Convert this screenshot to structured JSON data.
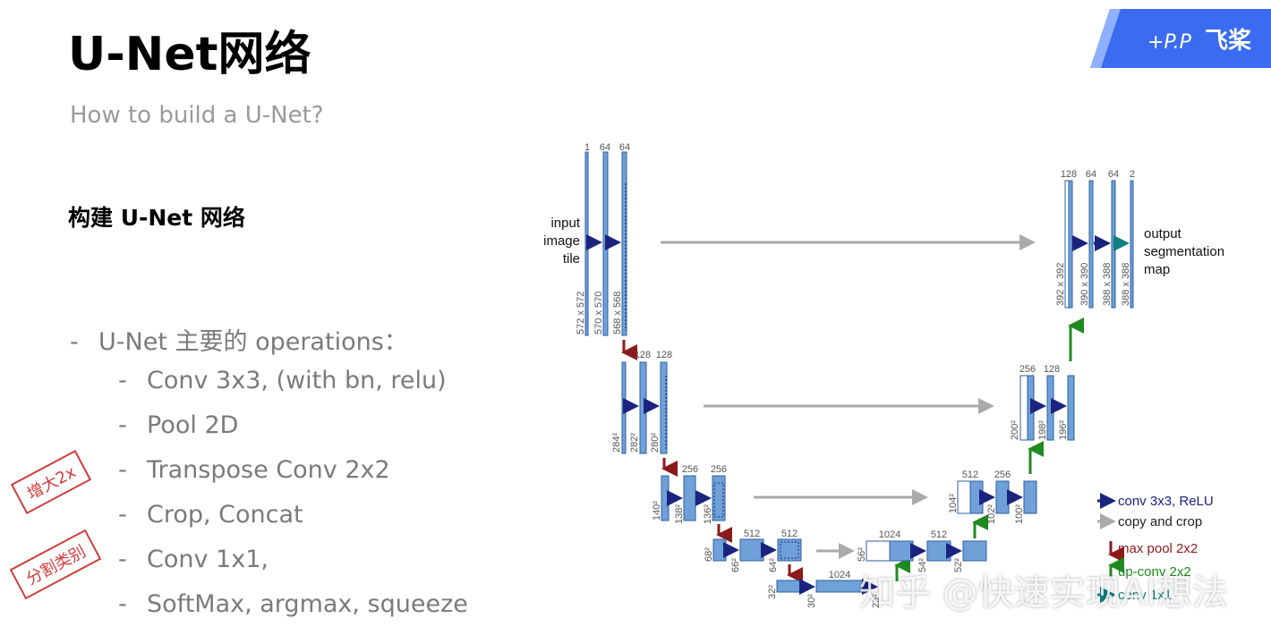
{
  "slide": {
    "title": "U-Net网络",
    "subtitle": "How to build a U-Net?",
    "heading": "构建 U-Net 网络",
    "bullets": [
      "U-Net 主要的 operations：",
      "Conv 3x3, (with bn, relu)",
      "Pool 2D",
      "Transpose Conv 2x2",
      "Crop, Concat",
      "Conv 1x1,",
      "SoftMax, argmax, squeeze"
    ],
    "stamps": [
      "增大2x",
      "分割类别"
    ],
    "logo_text": "飞桨",
    "watermark": "知乎 @快速实现AI想法"
  },
  "diagram": {
    "input_label": [
      "input",
      "image",
      "tile"
    ],
    "output_label": [
      "output",
      "segmentation",
      "map"
    ],
    "channels": {
      "l1_down": [
        "1",
        "64",
        "64"
      ],
      "l1_up": [
        "128",
        "64",
        "64",
        "2"
      ],
      "l2_down": [
        "128",
        "128"
      ],
      "l2_up": [
        "256",
        "128"
      ],
      "l3_down": [
        "256",
        "256"
      ],
      "l3_up": [
        "512",
        "256"
      ],
      "l4_down": [
        "512",
        "512"
      ],
      "l4_up": [
        "1024",
        "512"
      ],
      "l5": [
        "1024"
      ]
    },
    "sizes": {
      "l1_down": [
        "572 x 572",
        "570 x 570",
        "568 x 568"
      ],
      "l1_up": [
        "392 x 392",
        "390 x 390",
        "388 x 388",
        "388 x 388"
      ],
      "l2_down": [
        "284²",
        "282²",
        "280²"
      ],
      "l2_up": [
        "200²",
        "198²",
        "196²"
      ],
      "l3_down": [
        "140²",
        "138²",
        "136²"
      ],
      "l3_up": [
        "104²",
        "102²",
        "100²"
      ],
      "l4_down": [
        "68²",
        "66²",
        "64²"
      ],
      "l4_up": [
        "56²",
        "54²",
        "52²"
      ],
      "l5": [
        "32²",
        "30²",
        "28²"
      ]
    },
    "legend": [
      {
        "label": "conv 3x3, ReLU",
        "color": "#1a237e"
      },
      {
        "label": "copy and crop",
        "color": "#aaaaaa"
      },
      {
        "label": "max pool 2x2",
        "color": "#8b1a1a"
      },
      {
        "label": "up-conv 2x2",
        "color": "#1f8a1f"
      },
      {
        "label": "conv 1x1",
        "color": "#0f7f7f"
      }
    ]
  }
}
